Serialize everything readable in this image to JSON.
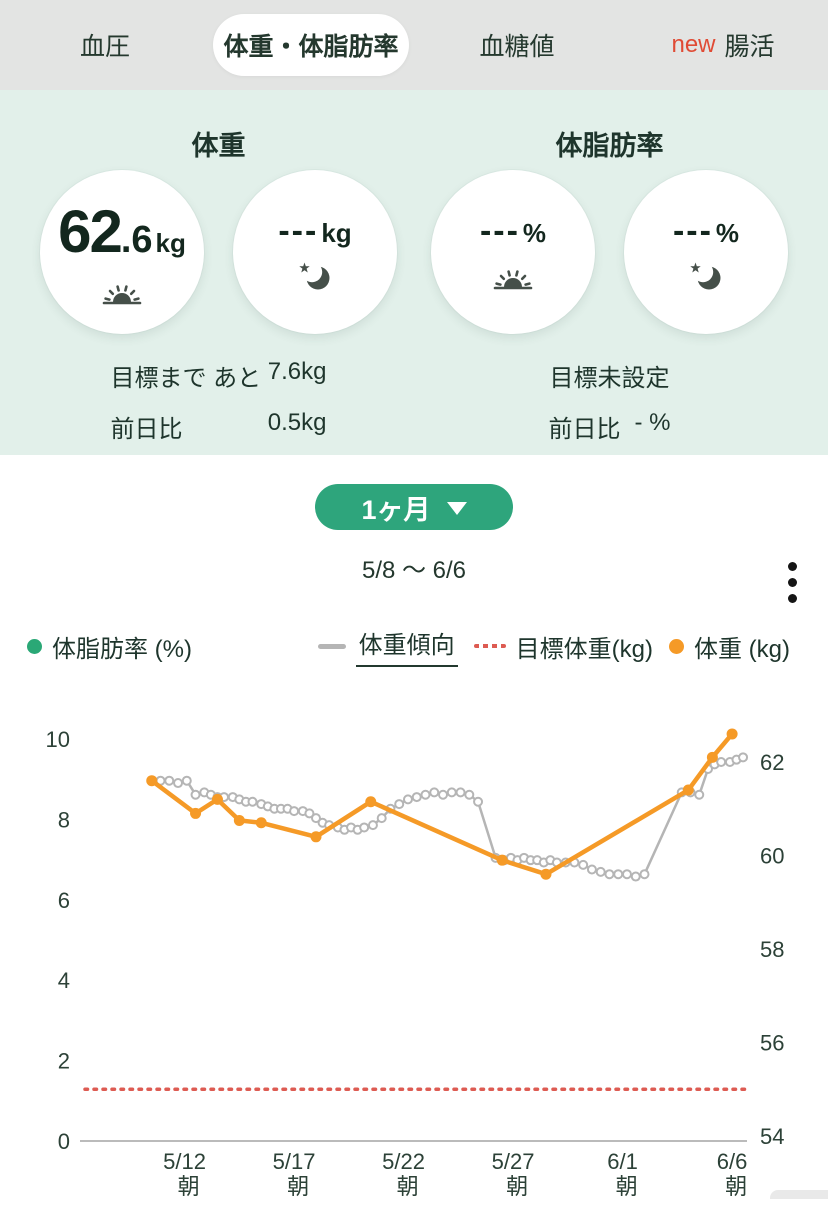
{
  "tabs": [
    {
      "label": "血圧",
      "active": false,
      "badge": ""
    },
    {
      "label": "体重・体脂肪率",
      "active": true,
      "badge": ""
    },
    {
      "label": "血糖値",
      "active": false,
      "badge": ""
    },
    {
      "label": "腸活",
      "active": false,
      "badge": "new"
    }
  ],
  "summary": {
    "weight": {
      "title": "体重",
      "morning_value_int": "62",
      "morning_value_dec": ".6",
      "morning_unit": "kg",
      "evening_value": "---",
      "evening_unit": "kg",
      "goal_label": "目標まで あと",
      "goal_value": "7.6kg",
      "diff_label": "前日比",
      "diff_value": "0.5kg"
    },
    "body_fat": {
      "title": "体脂肪率",
      "morning_value": "---",
      "morning_unit": "%",
      "evening_value": "---",
      "evening_unit": "%",
      "goal_text": "目標未設定",
      "diff_label": "前日比",
      "diff_value": "- %"
    }
  },
  "period": {
    "selector_label": "1ヶ月",
    "range_text": "5/8 〜 6/6"
  },
  "legend": {
    "body_fat": {
      "label": "体脂肪率 (%)",
      "color": "#2aa876"
    },
    "trend": {
      "label": "体重傾向",
      "color": "#b5b5b5"
    },
    "target": {
      "label": "目標体重(kg)",
      "color": "#dd5b52"
    },
    "weight": {
      "label": "体重 (kg)",
      "color": "#f59a27"
    }
  },
  "colors": {
    "accent_green": "#2ea57c",
    "panel_mint": "#e2f0ea",
    "tabbar_gray": "#e3e4e3",
    "dark_text": "#1e352c",
    "new_badge_red": "#e04b35",
    "axis_text": "#2c4137",
    "axis_line": "#bbbbbb"
  },
  "chart_data": {
    "type": "line",
    "date_range": "5/8 〜 6/6",
    "left_axis": {
      "label": "体脂肪率 (%)",
      "ticks": [
        0,
        2,
        4,
        6,
        8,
        10
      ],
      "range": [
        0,
        10
      ]
    },
    "right_axis": {
      "label": "体重 (kg)",
      "ticks": [
        54,
        56,
        58,
        60,
        62
      ],
      "range": [
        54,
        62.8
      ]
    },
    "x_axis": {
      "start_label": "5/8",
      "days_span": 29,
      "ticks": [
        {
          "day": 4,
          "date": "5/12",
          "time": "朝"
        },
        {
          "day": 9,
          "date": "5/17",
          "time": "朝"
        },
        {
          "day": 14,
          "date": "5/22",
          "time": "朝"
        },
        {
          "day": 19,
          "date": "5/27",
          "time": "朝"
        },
        {
          "day": 24,
          "date": "6/1",
          "time": "朝"
        },
        {
          "day": 29,
          "date": "6/6",
          "time": "朝"
        }
      ]
    },
    "target_weight_kg": 55,
    "series": [
      {
        "name": "体脂肪率",
        "style": "line",
        "color": "#2aa876",
        "points": []
      },
      {
        "name": "体重傾向",
        "style": "line_open_markers",
        "color": "#b5b5b5",
        "points": [
          [
            2.9,
            61.6
          ],
          [
            3.3,
            61.6
          ],
          [
            3.7,
            61.55
          ],
          [
            4.1,
            61.6
          ],
          [
            4.5,
            61.3
          ],
          [
            4.9,
            61.35
          ],
          [
            5.2,
            61.3
          ],
          [
            5.5,
            61.25
          ],
          [
            5.8,
            61.25
          ],
          [
            6.2,
            61.25
          ],
          [
            6.5,
            61.2
          ],
          [
            6.8,
            61.15
          ],
          [
            7.1,
            61.15
          ],
          [
            7.5,
            61.1
          ],
          [
            7.8,
            61.05
          ],
          [
            8.1,
            61.0
          ],
          [
            8.4,
            61.0
          ],
          [
            8.7,
            61.0
          ],
          [
            9.0,
            60.95
          ],
          [
            9.4,
            60.95
          ],
          [
            9.7,
            60.9
          ],
          [
            10.0,
            60.8
          ],
          [
            10.3,
            60.7
          ],
          [
            10.6,
            60.65
          ],
          [
            11.0,
            60.6
          ],
          [
            11.3,
            60.55
          ],
          [
            11.6,
            60.6
          ],
          [
            11.9,
            60.55
          ],
          [
            12.2,
            60.6
          ],
          [
            12.6,
            60.65
          ],
          [
            13.0,
            60.8
          ],
          [
            13.4,
            61.0
          ],
          [
            13.8,
            61.1
          ],
          [
            14.2,
            61.2
          ],
          [
            14.6,
            61.25
          ],
          [
            15.0,
            61.3
          ],
          [
            15.4,
            61.35
          ],
          [
            15.8,
            61.3
          ],
          [
            16.2,
            61.35
          ],
          [
            16.6,
            61.35
          ],
          [
            17.0,
            61.3
          ],
          [
            17.4,
            61.15
          ],
          [
            18.2,
            59.95
          ],
          [
            18.6,
            59.9
          ],
          [
            18.9,
            59.95
          ],
          [
            19.2,
            59.9
          ],
          [
            19.5,
            59.95
          ],
          [
            19.8,
            59.9
          ],
          [
            20.1,
            59.9
          ],
          [
            20.4,
            59.85
          ],
          [
            20.7,
            59.9
          ],
          [
            21.0,
            59.85
          ],
          [
            21.4,
            59.85
          ],
          [
            21.8,
            59.85
          ],
          [
            22.2,
            59.8
          ],
          [
            22.6,
            59.7
          ],
          [
            23.0,
            59.65
          ],
          [
            23.4,
            59.6
          ],
          [
            23.8,
            59.6
          ],
          [
            24.2,
            59.6
          ],
          [
            24.6,
            59.55
          ],
          [
            25.0,
            59.6
          ],
          [
            26.7,
            61.35
          ],
          [
            27.1,
            61.35
          ],
          [
            27.5,
            61.3
          ],
          [
            27.9,
            61.85
          ],
          [
            28.2,
            61.95
          ],
          [
            28.5,
            62.0
          ],
          [
            28.9,
            62.0
          ],
          [
            29.2,
            62.05
          ],
          [
            29.5,
            62.1
          ]
        ]
      },
      {
        "name": "体重",
        "style": "line_markers",
        "color": "#f59a27",
        "points": [
          [
            2.5,
            61.6
          ],
          [
            4.5,
            60.9
          ],
          [
            5.5,
            61.2
          ],
          [
            6.5,
            60.75
          ],
          [
            7.5,
            60.7
          ],
          [
            10.0,
            60.4
          ],
          [
            12.5,
            61.15
          ],
          [
            18.5,
            59.9
          ],
          [
            20.5,
            59.6
          ],
          [
            27.0,
            61.4
          ],
          [
            28.1,
            62.1
          ],
          [
            29.0,
            62.6
          ]
        ]
      }
    ]
  }
}
